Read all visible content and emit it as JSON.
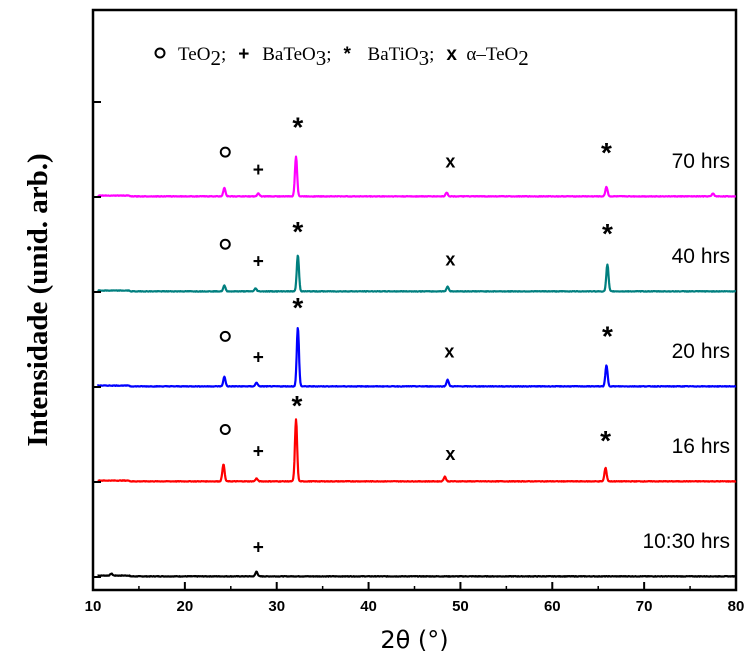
{
  "chart_data": {
    "type": "line",
    "xlabel": "2θ (°)",
    "ylabel": "Intensidade (unid. arb.)",
    "xlim": [
      10,
      80
    ],
    "xticks": [
      10,
      20,
      30,
      40,
      50,
      60,
      70,
      80
    ],
    "yticks_labeled": false,
    "grid": false,
    "legend": {
      "placement": "top",
      "entries": [
        {
          "symbol": "o",
          "text": "TeO",
          "sub": "2",
          "sep": ";"
        },
        {
          "symbol": "+",
          "text": "BaTeO",
          "sub": "3",
          "sep": ";"
        },
        {
          "symbol": "*",
          "text": "BaTiO",
          "sub": "3",
          "sep": ";"
        },
        {
          "symbol": "x",
          "text": "α–TeO",
          "sub": "2",
          "sep": ""
        }
      ]
    },
    "series": [
      {
        "name": "10:30 hrs",
        "color": "#000000",
        "offset": 0,
        "peaks": [
          [
            12,
            0.02
          ],
          [
            27.8,
            0.05
          ]
        ],
        "markers": [
          {
            "symbol": "+",
            "x": 28.0,
            "y": 0.25
          }
        ]
      },
      {
        "name": "16 hrs",
        "color": "#ff0000",
        "offset": 1,
        "peaks": [
          [
            24.2,
            0.18
          ],
          [
            27.8,
            0.03
          ],
          [
            32.1,
            0.65
          ],
          [
            48.3,
            0.05
          ],
          [
            65.8,
            0.14
          ]
        ],
        "markers": [
          {
            "symbol": "o",
            "x": 24.4,
            "y": 0.5
          },
          {
            "symbol": "+",
            "x": 28.0,
            "y": 0.26
          },
          {
            "symbol": "*",
            "x": 32.2,
            "y": 0.77
          },
          {
            "symbol": "x",
            "x": 48.9,
            "y": 0.23
          },
          {
            "symbol": "*",
            "x": 65.8,
            "y": 0.4
          }
        ]
      },
      {
        "name": "20 hrs",
        "color": "#0000ff",
        "offset": 2,
        "peaks": [
          [
            24.3,
            0.1
          ],
          [
            27.8,
            0.04
          ],
          [
            32.3,
            0.62
          ],
          [
            48.6,
            0.07
          ],
          [
            65.9,
            0.22
          ]
        ],
        "markers": [
          {
            "symbol": "o",
            "x": 24.4,
            "y": 0.48
          },
          {
            "symbol": "+",
            "x": 28.0,
            "y": 0.25
          },
          {
            "symbol": "*",
            "x": 32.3,
            "y": 0.8
          },
          {
            "symbol": "x",
            "x": 48.8,
            "y": 0.31
          },
          {
            "symbol": "*",
            "x": 66.0,
            "y": 0.5
          }
        ]
      },
      {
        "name": "40 hrs",
        "color": "#007f7f",
        "offset": 3,
        "peaks": [
          [
            24.3,
            0.06
          ],
          [
            27.7,
            0.03
          ],
          [
            32.3,
            0.38
          ],
          [
            48.6,
            0.05
          ],
          [
            66.0,
            0.28
          ]
        ],
        "markers": [
          {
            "symbol": "o",
            "x": 24.4,
            "y": 0.45
          },
          {
            "symbol": "+",
            "x": 28.0,
            "y": 0.26
          },
          {
            "symbol": "*",
            "x": 32.3,
            "y": 0.6
          },
          {
            "symbol": "x",
            "x": 48.9,
            "y": 0.28
          },
          {
            "symbol": "*",
            "x": 66.0,
            "y": 0.58
          }
        ]
      },
      {
        "name": "70 hrs",
        "color": "#ff00ff",
        "offset": 4,
        "peaks": [
          [
            24.3,
            0.09
          ],
          [
            28.0,
            0.03
          ],
          [
            32.1,
            0.42
          ],
          [
            48.5,
            0.04
          ],
          [
            65.9,
            0.1
          ],
          [
            77.5,
            0.03
          ]
        ],
        "markers": [
          {
            "symbol": "o",
            "x": 24.4,
            "y": 0.42
          },
          {
            "symbol": "+",
            "x": 28.0,
            "y": 0.22
          },
          {
            "symbol": "*",
            "x": 32.3,
            "y": 0.7
          },
          {
            "symbol": "x",
            "x": 48.9,
            "y": 0.31
          },
          {
            "symbol": "*",
            "x": 65.9,
            "y": 0.43
          }
        ]
      }
    ]
  }
}
